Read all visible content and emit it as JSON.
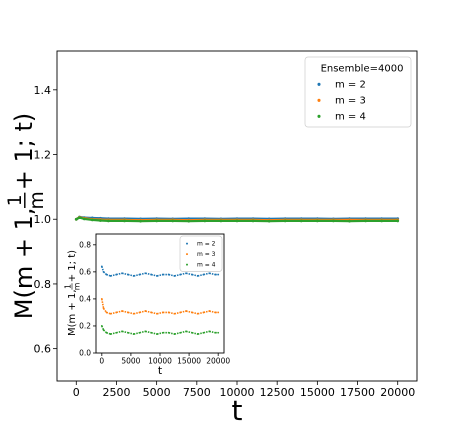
{
  "chart_data": [
    {
      "type": "scatter",
      "xlabel": "t",
      "ylabel_tex": {
        "pre": "M(m + 1, ",
        "num": "1",
        "den": "m",
        "post": " + 1; t)"
      },
      "xlim": [
        -1200,
        21200
      ],
      "ylim": [
        0.5,
        1.52
      ],
      "xticks": [
        0,
        2500,
        5000,
        7500,
        10000,
        12500,
        15000,
        17500,
        20000
      ],
      "yticks": [
        0.6,
        0.8,
        1.0,
        1.2,
        1.4
      ],
      "xtick_labels": [
        "0",
        "2500",
        "5000",
        "7500",
        "10000",
        "12500",
        "15000",
        "17500",
        "20000"
      ],
      "ytick_labels": [
        "0.6",
        "0.8",
        "1.0",
        "1.2",
        "1.4"
      ],
      "legend_title": "Ensemble=4000",
      "legend_position": "top-right",
      "series": [
        {
          "name": "m = 2",
          "color": "#1f77b4",
          "x": [
            0,
            200,
            500,
            1000,
            1500,
            2000,
            3000,
            4000,
            5000,
            6000,
            7000,
            8000,
            9000,
            10000,
            11000,
            12000,
            13000,
            14000,
            15000,
            16000,
            17000,
            18000,
            19000,
            20000
          ],
          "y": [
            1.0,
            1.007,
            1.005,
            1.004,
            1.003,
            1.002,
            1.002,
            1.001,
            1.002,
            1.001,
            1.002,
            1.002,
            1.001,
            1.002,
            1.002,
            1.001,
            1.002,
            1.002,
            1.002,
            1.001,
            1.002,
            1.002,
            1.002,
            1.002
          ]
        },
        {
          "name": "m = 3",
          "color": "#ff7f0e",
          "x": [
            0,
            200,
            500,
            1000,
            1500,
            2000,
            3000,
            4000,
            5000,
            6000,
            7000,
            8000,
            9000,
            10000,
            11000,
            12000,
            13000,
            14000,
            15000,
            16000,
            17000,
            18000,
            19000,
            20000
          ],
          "y": [
            1.0,
            1.006,
            1.003,
            1.0,
            0.999,
            0.998,
            0.998,
            0.997,
            0.998,
            0.998,
            0.997,
            0.998,
            0.998,
            0.998,
            0.998,
            0.997,
            0.998,
            0.998,
            0.998,
            0.998,
            0.998,
            0.998,
            0.998,
            0.998
          ]
        },
        {
          "name": "m = 4",
          "color": "#2ca02c",
          "x": [
            0,
            200,
            500,
            1000,
            1500,
            2000,
            3000,
            4000,
            5000,
            6000,
            7000,
            8000,
            9000,
            10000,
            11000,
            12000,
            13000,
            14000,
            15000,
            16000,
            17000,
            18000,
            19000,
            20000
          ],
          "y": [
            1.0,
            1.005,
            1.001,
            0.998,
            0.996,
            0.995,
            0.995,
            0.994,
            0.995,
            0.995,
            0.994,
            0.995,
            0.995,
            0.995,
            0.995,
            0.994,
            0.995,
            0.995,
            0.995,
            0.995,
            0.994,
            0.995,
            0.995,
            0.995
          ]
        }
      ]
    },
    {
      "type": "scatter",
      "inset": true,
      "xlabel": "t",
      "ylabel_tex": {
        "pre": "M(m + 1, ",
        "num": "1",
        "den": "m",
        "post": " + 1; t)"
      },
      "xlim": [
        -1000,
        21000
      ],
      "ylim": [
        0.0,
        0.88
      ],
      "xticks": [
        0,
        5000,
        10000,
        15000,
        20000
      ],
      "yticks": [
        0.0,
        0.2,
        0.4,
        0.6,
        0.8
      ],
      "xtick_labels": [
        "0",
        "5000",
        "10000",
        "15000",
        "20000"
      ],
      "ytick_labels": [
        "0.0",
        "0.2",
        "0.4",
        "0.6",
        "0.8"
      ],
      "legend_position": "top-right",
      "series": [
        {
          "name": "m = 2",
          "color": "#1f77b4",
          "x": [
            0,
            300,
            800,
            1500,
            2500,
            3500,
            4500,
            5500,
            6500,
            7500,
            8500,
            9500,
            10500,
            11500,
            12500,
            13500,
            14500,
            15500,
            16500,
            17500,
            18500,
            19500,
            20000
          ],
          "y": [
            0.64,
            0.6,
            0.58,
            0.57,
            0.58,
            0.59,
            0.58,
            0.57,
            0.58,
            0.59,
            0.58,
            0.57,
            0.58,
            0.58,
            0.57,
            0.58,
            0.59,
            0.58,
            0.57,
            0.58,
            0.59,
            0.58,
            0.58
          ]
        },
        {
          "name": "m = 3",
          "color": "#ff7f0e",
          "x": [
            0,
            300,
            800,
            1500,
            2500,
            3500,
            4500,
            5500,
            6500,
            7500,
            8500,
            9500,
            10500,
            11500,
            12500,
            13500,
            14500,
            15500,
            16500,
            17500,
            18500,
            19500,
            20000
          ],
          "y": [
            0.4,
            0.33,
            0.3,
            0.29,
            0.3,
            0.31,
            0.3,
            0.29,
            0.3,
            0.31,
            0.3,
            0.29,
            0.3,
            0.3,
            0.29,
            0.3,
            0.31,
            0.3,
            0.29,
            0.3,
            0.31,
            0.3,
            0.3
          ]
        },
        {
          "name": "m = 4",
          "color": "#2ca02c",
          "x": [
            0,
            300,
            800,
            1500,
            2500,
            3500,
            4500,
            5500,
            6500,
            7500,
            8500,
            9500,
            10500,
            11500,
            12500,
            13500,
            14500,
            15500,
            16500,
            17500,
            18500,
            19500,
            20000
          ],
          "y": [
            0.2,
            0.17,
            0.15,
            0.14,
            0.15,
            0.16,
            0.15,
            0.14,
            0.15,
            0.16,
            0.15,
            0.14,
            0.15,
            0.15,
            0.14,
            0.15,
            0.16,
            0.15,
            0.14,
            0.15,
            0.16,
            0.15,
            0.15
          ]
        }
      ]
    }
  ]
}
